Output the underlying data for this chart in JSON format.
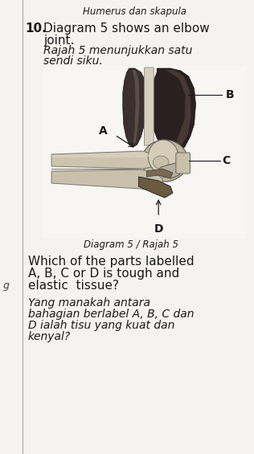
{
  "bg_color": "#f5f3ef",
  "white_color": "#ffffff",
  "title_top": "Humerus dan skapula",
  "question_number": "10.",
  "question_en1": "Diagram 5 shows an elbow",
  "question_en2": "joint.",
  "question_ms1": "Rajah 5 menunjukkan satu",
  "question_ms2": "sendi siku.",
  "diagram_caption": "Diagram 5 / Rajah 5",
  "label_A": "A",
  "label_B": "B",
  "label_C": "C",
  "label_D": "D",
  "question_body_line1": "Which of the parts labelled",
  "question_body_line2": "A, B, C or D is tough and",
  "question_body_line3": "elastic  tissue?",
  "question_ms_line1": "Yang manakah antara",
  "question_ms_line2": "bahagian berlabel A, B, C dan",
  "question_ms_line3": "D ialah tisu yang kuat dan",
  "question_ms_line4": "kenyal?",
  "text_color": "#1a1a1a",
  "dark_muscle": "#3a3030",
  "mid_muscle": "#6a5a50",
  "bone_color": "#c8bfaa",
  "bone_dark": "#8a8070",
  "ligament_color": "#7a6a58",
  "cartilage_color": "#d0c8b5",
  "joint_dark": "#4a3a28",
  "fig_width": 3.16,
  "fig_height": 5.65,
  "dpi": 100
}
